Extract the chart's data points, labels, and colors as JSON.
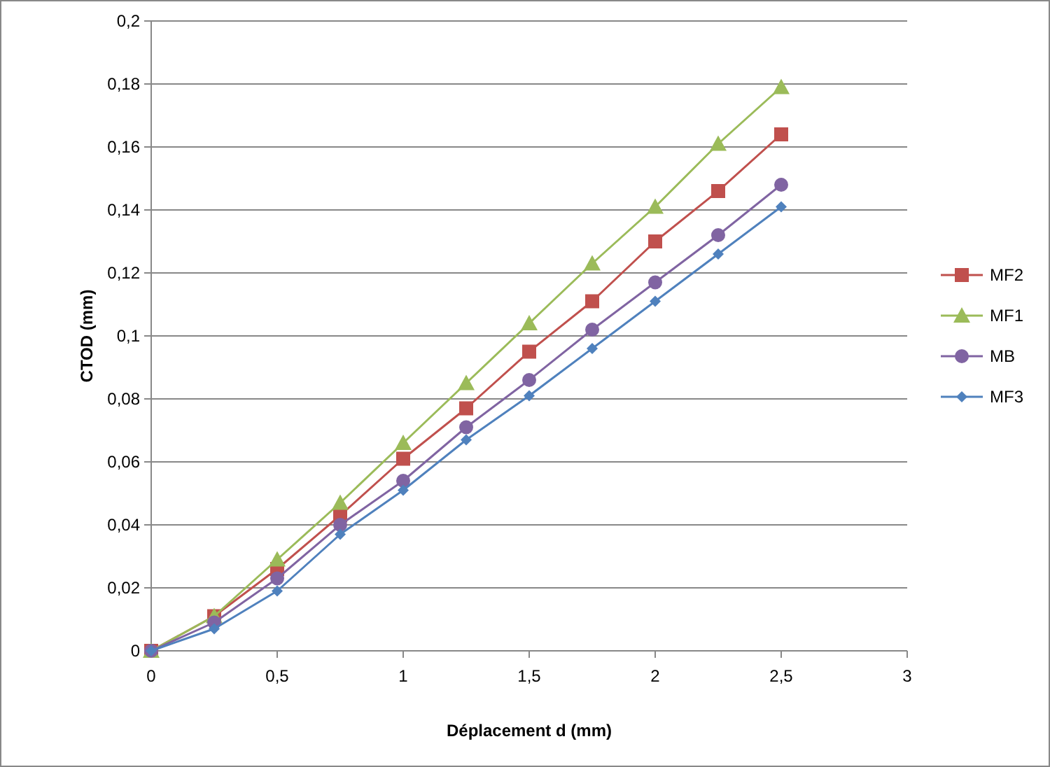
{
  "chart_data": {
    "type": "line",
    "xlabel": "Déplacement d (mm)",
    "ylabel": "CTOD (mm)",
    "x": [
      0,
      0.25,
      0.5,
      0.75,
      1,
      1.25,
      1.5,
      1.75,
      2,
      2.25,
      2.5
    ],
    "series": [
      {
        "name": "MF2",
        "color": "#c0504d",
        "marker": "square",
        "values": [
          0,
          0.011,
          0.026,
          0.043,
          0.061,
          0.077,
          0.095,
          0.111,
          0.13,
          0.146,
          0.164
        ]
      },
      {
        "name": "MF1",
        "color": "#9bbb59",
        "marker": "triangle",
        "values": [
          0,
          0.011,
          0.029,
          0.047,
          0.066,
          0.085,
          0.104,
          0.123,
          0.141,
          0.161,
          0.179
        ]
      },
      {
        "name": "MB",
        "color": "#8064a2",
        "marker": "circle",
        "values": [
          0,
          0.009,
          0.023,
          0.04,
          0.054,
          0.071,
          0.086,
          0.102,
          0.117,
          0.132,
          0.148
        ]
      },
      {
        "name": "MF3",
        "color": "#4f81bd",
        "marker": "diamond",
        "values": [
          0,
          0.007,
          0.019,
          0.037,
          0.051,
          0.067,
          0.081,
          0.096,
          0.111,
          0.126,
          0.141
        ]
      }
    ],
    "xlim": [
      0,
      3
    ],
    "xticks": [
      0,
      {
        "value": 0.5,
        "label": "0,5"
      },
      1,
      {
        "value": 1.5,
        "label": "1,5"
      },
      2,
      {
        "value": 2.5,
        "label": "2,5"
      },
      3
    ],
    "ylim": [
      0,
      0.2
    ],
    "yticks": [
      0,
      {
        "value": 0.02,
        "label": "0,02"
      },
      {
        "value": 0.04,
        "label": "0,04"
      },
      {
        "value": 0.06,
        "label": "0,06"
      },
      {
        "value": 0.08,
        "label": "0,08"
      },
      {
        "value": 0.1,
        "label": "0,1"
      },
      {
        "value": 0.12,
        "label": "0,12"
      },
      {
        "value": 0.14,
        "label": "0,14"
      },
      {
        "value": 0.16,
        "label": "0,16"
      },
      {
        "value": 0.18,
        "label": "0,18"
      },
      {
        "value": 0.2,
        "label": "0,2"
      }
    ],
    "grid": "y",
    "legend": "right",
    "line_style": "solid"
  }
}
